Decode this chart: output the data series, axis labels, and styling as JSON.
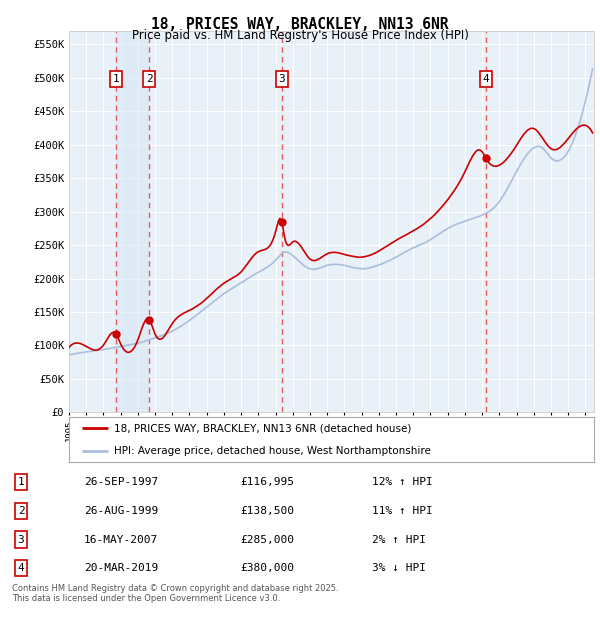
{
  "title": "18, PRICES WAY, BRACKLEY, NN13 6NR",
  "subtitle": "Price paid vs. HM Land Registry's House Price Index (HPI)",
  "ylabel_ticks": [
    "£0",
    "£50K",
    "£100K",
    "£150K",
    "£200K",
    "£250K",
    "£300K",
    "£350K",
    "£400K",
    "£450K",
    "£500K",
    "£550K"
  ],
  "ytick_values": [
    0,
    50000,
    100000,
    150000,
    200000,
    250000,
    300000,
    350000,
    400000,
    450000,
    500000,
    550000
  ],
  "ylim": [
    0,
    570000
  ],
  "xlim_start": 1995.0,
  "xlim_end": 2025.5,
  "sale_dates": [
    1997.73,
    1999.65,
    2007.37,
    2019.22
  ],
  "sale_prices": [
    116995,
    138500,
    285000,
    380000
  ],
  "sale_labels": [
    "1",
    "2",
    "3",
    "4"
  ],
  "sale_dates_str": [
    "26-SEP-1997",
    "26-AUG-1999",
    "16-MAY-2007",
    "20-MAR-2019"
  ],
  "sale_hpi_pct": [
    "12% ↑ HPI",
    "11% ↑ HPI",
    "2% ↑ HPI",
    "3% ↓ HPI"
  ],
  "sale_prices_str": [
    "£116,995",
    "£138,500",
    "£285,000",
    "£380,000"
  ],
  "hpi_line_color": "#aabfdc",
  "price_line_color": "#cc0000",
  "sale_marker_color": "#cc0000",
  "vline_color": "#e06060",
  "background_color": "#e8f0f8",
  "highlight_color": "#d8e8f5",
  "grid_color": "#ffffff",
  "legend_box_color": "#ffffff",
  "title_fontsize": 11,
  "subtitle_fontsize": 9,
  "footer_text": "Contains HM Land Registry data © Crown copyright and database right 2025.\nThis data is licensed under the Open Government Licence v3.0.",
  "legend_label_red": "18, PRICES WAY, BRACKLEY, NN13 6NR (detached house)",
  "legend_label_blue": "HPI: Average price, detached house, West Northamptonshire"
}
